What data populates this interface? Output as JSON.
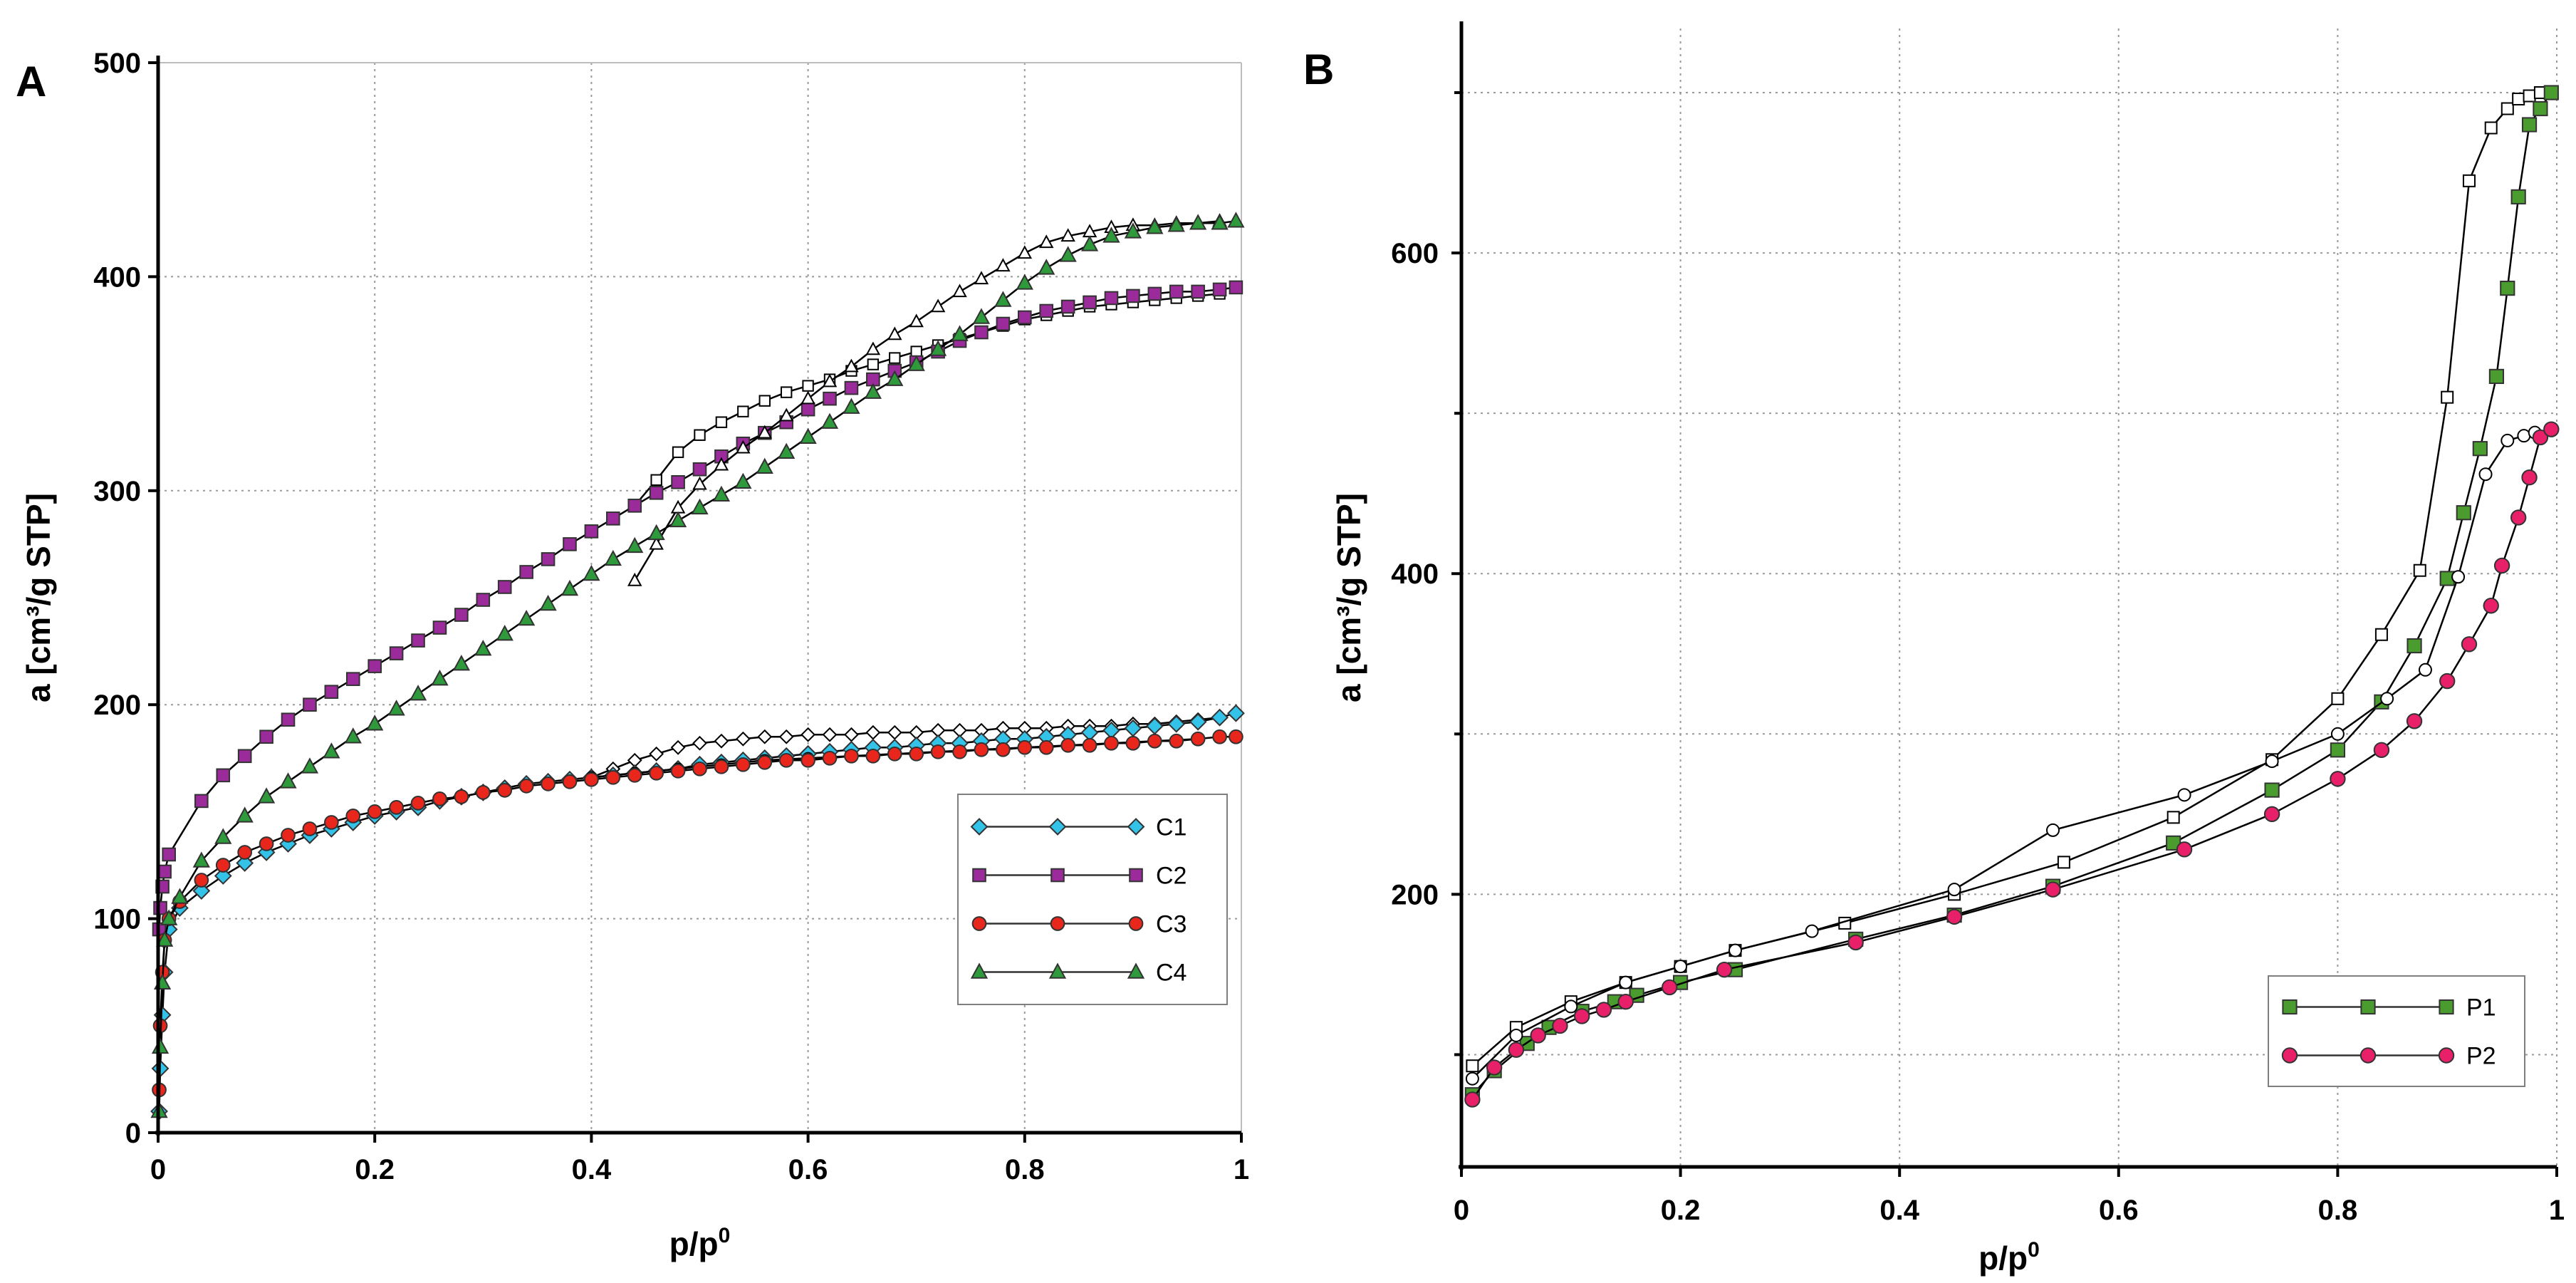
{
  "chart_data": [
    {
      "type": "line",
      "panel_label": "A",
      "xlabel": "p/p",
      "xlabel_sup": "0",
      "ylabel": "a [cm³/g STP]",
      "xlim": [
        0,
        1
      ],
      "ylim": [
        0,
        500
      ],
      "x_ticks": [
        0,
        0.2,
        0.4,
        0.6,
        0.8,
        1
      ],
      "x_tick_labels": [
        "0",
        "0.2",
        "0.4",
        "0.6",
        "0.8",
        "1"
      ],
      "y_ticks": [
        0,
        100,
        200,
        300,
        400,
        500
      ],
      "y_tick_labels": [
        "0",
        "100",
        "200",
        "300",
        "400",
        "500"
      ],
      "grid": true,
      "legend_position": "right-middle",
      "series": [
        {
          "name": "C1",
          "color": "#33c3e8",
          "marker": "diamond",
          "adsorption": {
            "x": [
              0.001,
              0.002,
              0.004,
              0.006,
              0.01,
              0.02,
              0.04,
              0.06,
              0.08,
              0.1,
              0.12,
              0.14,
              0.16,
              0.18,
              0.2,
              0.22,
              0.24,
              0.26,
              0.28,
              0.3,
              0.32,
              0.34,
              0.36,
              0.38,
              0.4,
              0.42,
              0.44,
              0.46,
              0.48,
              0.5,
              0.52,
              0.54,
              0.56,
              0.58,
              0.6,
              0.62,
              0.64,
              0.66,
              0.68,
              0.7,
              0.72,
              0.74,
              0.76,
              0.78,
              0.8,
              0.82,
              0.84,
              0.86,
              0.88,
              0.9,
              0.92,
              0.94,
              0.96,
              0.98,
              0.995
            ],
            "y": [
              10,
              30,
              55,
              75,
              95,
              105,
              113,
              120,
              126,
              131,
              135,
              139,
              142,
              145,
              148,
              150,
              152,
              155,
              157,
              159,
              161,
              163,
              164,
              165,
              166,
              167,
              168,
              169,
              170,
              172,
              173,
              174,
              175,
              176,
              177,
              178,
              179,
              180,
              180,
              181,
              182,
              182,
              183,
              184,
              184,
              185,
              186,
              187,
              188,
              189,
              190,
              191,
              192,
              194,
              196
            ]
          },
          "desorption": {
            "x": [
              0.4,
              0.42,
              0.44,
              0.46,
              0.48,
              0.5,
              0.52,
              0.54,
              0.56,
              0.58,
              0.6,
              0.62,
              0.64,
              0.66,
              0.68,
              0.7,
              0.72,
              0.74,
              0.76,
              0.78,
              0.8,
              0.82,
              0.84,
              0.86,
              0.88,
              0.9,
              0.92,
              0.94,
              0.96,
              0.98
            ],
            "y": [
              166,
              170,
              174,
              177,
              180,
              182,
              183,
              184,
              185,
              185,
              186,
              186,
              186,
              187,
              187,
              187,
              188,
              188,
              188,
              189,
              189,
              189,
              190,
              190,
              190,
              191,
              191,
              192,
              193,
              194
            ]
          }
        },
        {
          "name": "C2",
          "color": "#9b2a9b",
          "marker": "square",
          "adsorption": {
            "x": [
              0.001,
              0.002,
              0.004,
              0.006,
              0.01,
              0.04,
              0.06,
              0.08,
              0.1,
              0.12,
              0.14,
              0.16,
              0.18,
              0.2,
              0.22,
              0.24,
              0.26,
              0.28,
              0.3,
              0.32,
              0.34,
              0.36,
              0.38,
              0.4,
              0.42,
              0.44,
              0.46,
              0.48,
              0.5,
              0.52,
              0.54,
              0.56,
              0.58,
              0.6,
              0.62,
              0.64,
              0.66,
              0.68,
              0.7,
              0.72,
              0.74,
              0.76,
              0.78,
              0.8,
              0.82,
              0.84,
              0.86,
              0.88,
              0.9,
              0.92,
              0.94,
              0.96,
              0.98,
              0.995
            ],
            "y": [
              95,
              105,
              115,
              122,
              130,
              155,
              167,
              176,
              185,
              193,
              200,
              206,
              212,
              218,
              224,
              230,
              236,
              242,
              249,
              255,
              262,
              268,
              275,
              281,
              287,
              293,
              299,
              304,
              310,
              316,
              322,
              327,
              332,
              338,
              343,
              348,
              352,
              356,
              360,
              365,
              370,
              374,
              378,
              381,
              384,
              386,
              388,
              390,
              391,
              392,
              393,
              393,
              394,
              395
            ]
          },
          "desorption": {
            "x": [
              0.44,
              0.46,
              0.48,
              0.5,
              0.52,
              0.54,
              0.56,
              0.58,
              0.6,
              0.62,
              0.64,
              0.66,
              0.68,
              0.7,
              0.72,
              0.74,
              0.76,
              0.78,
              0.8,
              0.82,
              0.84,
              0.86,
              0.88,
              0.9,
              0.92,
              0.94,
              0.96,
              0.98
            ],
            "y": [
              293,
              305,
              318,
              326,
              332,
              337,
              342,
              346,
              349,
              352,
              356,
              359,
              362,
              365,
              368,
              371,
              374,
              377,
              380,
              382,
              384,
              386,
              387,
              388,
              389,
              390,
              391,
              392
            ]
          }
        },
        {
          "name": "C3",
          "color": "#e8261c",
          "marker": "circle",
          "adsorption": {
            "x": [
              0.001,
              0.002,
              0.004,
              0.006,
              0.01,
              0.02,
              0.04,
              0.06,
              0.08,
              0.1,
              0.12,
              0.14,
              0.16,
              0.18,
              0.2,
              0.22,
              0.24,
              0.26,
              0.28,
              0.3,
              0.32,
              0.34,
              0.36,
              0.38,
              0.4,
              0.42,
              0.44,
              0.46,
              0.48,
              0.5,
              0.52,
              0.54,
              0.56,
              0.58,
              0.6,
              0.62,
              0.64,
              0.66,
              0.68,
              0.7,
              0.72,
              0.74,
              0.76,
              0.78,
              0.8,
              0.82,
              0.84,
              0.86,
              0.88,
              0.9,
              0.92,
              0.94,
              0.96,
              0.98,
              0.995
            ],
            "y": [
              20,
              50,
              75,
              90,
              100,
              108,
              118,
              125,
              131,
              135,
              139,
              142,
              145,
              148,
              150,
              152,
              154,
              156,
              157,
              159,
              160,
              162,
              163,
              164,
              165,
              166,
              167,
              168,
              169,
              170,
              171,
              172,
              173,
              174,
              174,
              175,
              176,
              176,
              177,
              177,
              178,
              178,
              179,
              179,
              180,
              180,
              181,
              181,
              182,
              182,
              183,
              183,
              184,
              185,
              185
            ]
          },
          "desorption": {
            "x": [
              0.4,
              0.44,
              0.48,
              0.52,
              0.56,
              0.6,
              0.64,
              0.68,
              0.72,
              0.76,
              0.8,
              0.84,
              0.88,
              0.92,
              0.96
            ],
            "y": [
              166,
              168,
              170,
              172,
              174,
              175,
              176,
              177,
              178,
              179,
              180,
              181,
              182,
              183,
              184
            ]
          }
        },
        {
          "name": "C4",
          "color": "#2e9a3c",
          "marker": "triangle",
          "adsorption": {
            "x": [
              0.001,
              0.002,
              0.004,
              0.006,
              0.01,
              0.02,
              0.04,
              0.06,
              0.08,
              0.1,
              0.12,
              0.14,
              0.16,
              0.18,
              0.2,
              0.22,
              0.24,
              0.26,
              0.28,
              0.3,
              0.32,
              0.34,
              0.36,
              0.38,
              0.4,
              0.42,
              0.44,
              0.46,
              0.48,
              0.5,
              0.52,
              0.54,
              0.56,
              0.58,
              0.6,
              0.62,
              0.64,
              0.66,
              0.68,
              0.7,
              0.72,
              0.74,
              0.76,
              0.78,
              0.8,
              0.82,
              0.84,
              0.86,
              0.88,
              0.9,
              0.92,
              0.94,
              0.96,
              0.98,
              0.995
            ],
            "y": [
              10,
              40,
              70,
              90,
              100,
              110,
              127,
              138,
              148,
              157,
              164,
              171,
              178,
              185,
              191,
              198,
              205,
              212,
              219,
              226,
              233,
              240,
              247,
              254,
              261,
              268,
              274,
              280,
              286,
              292,
              298,
              304,
              311,
              318,
              325,
              332,
              339,
              346,
              352,
              359,
              366,
              373,
              381,
              389,
              397,
              404,
              410,
              415,
              419,
              421,
              423,
              424,
              425,
              425,
              426
            ]
          },
          "desorption": {
            "x": [
              0.44,
              0.46,
              0.48,
              0.5,
              0.52,
              0.54,
              0.56,
              0.58,
              0.6,
              0.62,
              0.64,
              0.66,
              0.68,
              0.7,
              0.72,
              0.74,
              0.76,
              0.78,
              0.8,
              0.82,
              0.84,
              0.86,
              0.88,
              0.9,
              0.92,
              0.94,
              0.96,
              0.98
            ],
            "y": [
              258,
              275,
              292,
              303,
              312,
              320,
              327,
              335,
              343,
              351,
              358,
              366,
              373,
              379,
              386,
              393,
              399,
              405,
              411,
              416,
              419,
              421,
              423,
              424,
              424,
              425,
              425,
              426
            ]
          }
        }
      ]
    },
    {
      "type": "line",
      "panel_label": "B",
      "xlabel": "p/p",
      "xlabel_sup": "0",
      "ylabel": "a [cm³/g STP]",
      "xlim": [
        0,
        1
      ],
      "ylim": [
        30,
        740
      ],
      "x_ticks": [
        0,
        0.2,
        0.4,
        0.6,
        0.8,
        1
      ],
      "x_tick_labels": [
        "0",
        "0.2",
        "0.4",
        "0.6",
        "0.8",
        "1"
      ],
      "y_ticks": [
        200,
        400,
        600
      ],
      "y_tick_labels": [
        "200",
        "400",
        "600"
      ],
      "y_gridlines": [
        100,
        200,
        300,
        400,
        500,
        600,
        700
      ],
      "grid": true,
      "legend_position": "bottom-right",
      "series": [
        {
          "name": "P1",
          "color": "#4a9c2e",
          "marker": "square",
          "adsorption": {
            "x": [
              0.01,
              0.03,
              0.06,
              0.08,
              0.11,
              0.14,
              0.16,
              0.2,
              0.25,
              0.36,
              0.45,
              0.54,
              0.65,
              0.74,
              0.8,
              0.84,
              0.87,
              0.9,
              0.915,
              0.93,
              0.945,
              0.955,
              0.965,
              0.975,
              0.985,
              0.995
            ],
            "y": [
              75,
              90,
              107,
              117,
              127,
              133,
              137,
              145,
              153,
              172,
              187,
              205,
              232,
              265,
              290,
              320,
              355,
              397,
              438,
              478,
              523,
              578,
              635,
              680,
              690,
              700
            ]
          },
          "desorption": {
            "x": [
              0.01,
              0.05,
              0.1,
              0.15,
              0.2,
              0.25,
              0.35,
              0.45,
              0.55,
              0.65,
              0.74,
              0.8,
              0.84,
              0.875,
              0.9,
              0.92,
              0.94,
              0.955,
              0.965,
              0.975,
              0.985
            ],
            "y": [
              93,
              117,
              133,
              145,
              155,
              165,
              182,
              200,
              220,
              248,
              284,
              322,
              362,
              402,
              510,
              645,
              678,
              690,
              696,
              698,
              700
            ]
          }
        },
        {
          "name": "P2",
          "color": "#e8206a",
          "marker": "circle",
          "adsorption": {
            "x": [
              0.01,
              0.03,
              0.05,
              0.07,
              0.09,
              0.11,
              0.13,
              0.15,
              0.19,
              0.24,
              0.36,
              0.45,
              0.54,
              0.66,
              0.74,
              0.8,
              0.84,
              0.87,
              0.9,
              0.92,
              0.94,
              0.95,
              0.965,
              0.975,
              0.985,
              0.995
            ],
            "y": [
              72,
              92,
              103,
              112,
              118,
              124,
              128,
              133,
              142,
              153,
              170,
              186,
              203,
              228,
              250,
              272,
              290,
              308,
              333,
              356,
              380,
              405,
              435,
              460,
              485,
              490
            ]
          },
          "desorption": {
            "x": [
              0.01,
              0.05,
              0.1,
              0.15,
              0.2,
              0.25,
              0.32,
              0.45,
              0.54,
              0.66,
              0.74,
              0.8,
              0.845,
              0.88,
              0.91,
              0.935,
              0.955,
              0.97,
              0.98
            ],
            "y": [
              85,
              112,
              130,
              145,
              155,
              165,
              177,
              203,
              240,
              262,
              283,
              300,
              322,
              340,
              398,
              462,
              483,
              486,
              488
            ]
          }
        }
      ]
    }
  ]
}
